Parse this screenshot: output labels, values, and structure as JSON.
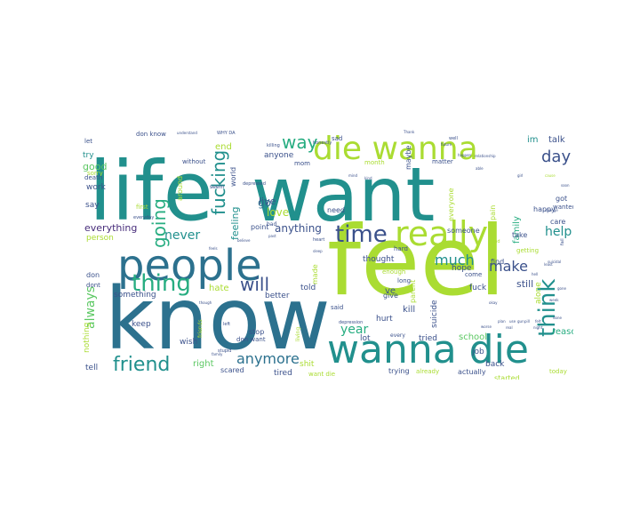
{
  "word_cloud": {
    "colors": {
      "purple": "#472c7a",
      "indigo": "#3b518b",
      "blue": "#2c718e",
      "teal": "#21908d",
      "green": "#27ad81",
      "lightgreen": "#5cc863",
      "lime": "#aadc32"
    },
    "words": [
      {
        "text": "life",
        "color": "teal"
      },
      {
        "text": "want",
        "color": "teal"
      },
      {
        "text": "feel",
        "color": "lime"
      },
      {
        "text": "know",
        "color": "blue"
      },
      {
        "text": "people",
        "color": "blue"
      },
      {
        "text": "wanna die",
        "color": "teal"
      },
      {
        "text": "die wanna",
        "color": "lime"
      },
      {
        "text": "really",
        "color": "lime"
      },
      {
        "text": "time",
        "color": "indigo"
      },
      {
        "text": "thing",
        "color": "green"
      },
      {
        "text": "think",
        "color": "teal"
      },
      {
        "text": "friend",
        "color": "teal"
      },
      {
        "text": "will",
        "color": "indigo"
      },
      {
        "text": "going",
        "color": "green"
      },
      {
        "text": "fucking",
        "color": "teal"
      },
      {
        "text": "way",
        "color": "green"
      },
      {
        "text": "day",
        "color": "indigo"
      },
      {
        "text": "much",
        "color": "teal"
      },
      {
        "text": "make",
        "color": "indigo"
      },
      {
        "text": "help",
        "color": "teal"
      },
      {
        "text": "year",
        "color": "green"
      },
      {
        "text": "anymore",
        "color": "blue"
      },
      {
        "text": "never",
        "color": "teal"
      },
      {
        "text": "everything",
        "color": "purple"
      },
      {
        "text": "always",
        "color": "lightgreen"
      },
      {
        "text": "anything",
        "color": "indigo"
      },
      {
        "text": "good",
        "color": "lightgreen"
      },
      {
        "text": "feeling",
        "color": "teal"
      },
      {
        "text": "love",
        "color": "lime"
      },
      {
        "text": "live",
        "color": "indigo"
      },
      {
        "text": "go",
        "color": "blue"
      },
      {
        "text": "im",
        "color": "teal"
      },
      {
        "text": "talk",
        "color": "indigo"
      },
      {
        "text": "end",
        "color": "lime"
      },
      {
        "text": "hate",
        "color": "lime"
      },
      {
        "text": "ve",
        "color": "indigo"
      },
      {
        "text": "family",
        "color": "green"
      },
      {
        "text": "still",
        "color": "indigo"
      },
      {
        "text": "school",
        "color": "lightgreen"
      },
      {
        "text": "kill",
        "color": "indigo"
      },
      {
        "text": "reason",
        "color": "green"
      },
      {
        "text": "right",
        "color": "lightgreen"
      },
      {
        "text": "shit",
        "color": "lime"
      },
      {
        "text": "job",
        "color": "indigo"
      },
      {
        "text": "tell",
        "color": "indigo"
      },
      {
        "text": "try",
        "color": "teal"
      },
      {
        "text": "say",
        "color": "indigo"
      },
      {
        "text": "work",
        "color": "indigo"
      },
      {
        "text": "person",
        "color": "lime"
      },
      {
        "text": "something",
        "color": "indigo"
      },
      {
        "text": "nothing",
        "color": "lime"
      },
      {
        "text": "keep",
        "color": "indigo"
      },
      {
        "text": "wish",
        "color": "indigo"
      },
      {
        "text": "better",
        "color": "indigo"
      },
      {
        "text": "told",
        "color": "indigo"
      },
      {
        "text": "made",
        "color": "lime"
      },
      {
        "text": "hope",
        "color": "indigo"
      },
      {
        "text": "hurt",
        "color": "indigo"
      },
      {
        "text": "thought",
        "color": "indigo"
      },
      {
        "text": "suicide",
        "color": "indigo"
      },
      {
        "text": "fuck",
        "color": "indigo"
      },
      {
        "text": "parent",
        "color": "lime"
      },
      {
        "text": "alone",
        "color": "lime"
      },
      {
        "text": "tried",
        "color": "indigo"
      },
      {
        "text": "lot",
        "color": "indigo"
      },
      {
        "text": "back",
        "color": "indigo"
      },
      {
        "text": "actually",
        "color": "indigo"
      },
      {
        "text": "tired",
        "color": "indigo"
      },
      {
        "text": "scared",
        "color": "indigo"
      },
      {
        "text": "stop",
        "color": "indigo"
      },
      {
        "text": "don",
        "color": "indigo"
      },
      {
        "text": "dont",
        "color": "indigo"
      },
      {
        "text": "sorry",
        "color": "lime"
      },
      {
        "text": "care",
        "color": "indigo"
      },
      {
        "text": "happy",
        "color": "indigo"
      },
      {
        "text": "got",
        "color": "indigo"
      },
      {
        "text": "wanted",
        "color": "indigo"
      },
      {
        "text": "find",
        "color": "indigo"
      },
      {
        "text": "come",
        "color": "indigo"
      },
      {
        "text": "take",
        "color": "indigo"
      },
      {
        "text": "getting",
        "color": "lime"
      },
      {
        "text": "someone",
        "color": "indigo"
      },
      {
        "text": "everyone",
        "color": "lime"
      },
      {
        "text": "pain",
        "color": "lime"
      },
      {
        "text": "need",
        "color": "indigo"
      },
      {
        "text": "anyone",
        "color": "indigo"
      },
      {
        "text": "mom",
        "color": "indigo"
      },
      {
        "text": "maybe",
        "color": "indigo"
      },
      {
        "text": "matter",
        "color": "indigo"
      },
      {
        "text": "month",
        "color": "lime"
      },
      {
        "text": "point",
        "color": "indigo"
      },
      {
        "text": "world",
        "color": "indigo"
      },
      {
        "text": "around",
        "color": "lime"
      },
      {
        "text": "don know",
        "color": "indigo"
      },
      {
        "text": "don want",
        "color": "indigo"
      },
      {
        "text": "want die",
        "color": "lime"
      },
      {
        "text": "without",
        "color": "indigo"
      },
      {
        "text": "death",
        "color": "indigo"
      },
      {
        "text": "let",
        "color": "indigo"
      },
      {
        "text": "sad",
        "color": "indigo"
      },
      {
        "text": "give",
        "color": "indigo"
      },
      {
        "text": "said",
        "color": "indigo"
      },
      {
        "text": "enough",
        "color": "lime"
      },
      {
        "text": "long",
        "color": "indigo"
      },
      {
        "text": "every",
        "color": "indigo"
      },
      {
        "text": "trying",
        "color": "indigo"
      },
      {
        "text": "already",
        "color": "lime"
      },
      {
        "text": "started",
        "color": "lime"
      },
      {
        "text": "today",
        "color": "lime"
      },
      {
        "text": "hard",
        "color": "indigo"
      },
      {
        "text": "first",
        "color": "lime"
      },
      {
        "text": "bad",
        "color": "indigo"
      },
      {
        "text": "seem",
        "color": "indigo"
      },
      {
        "text": "friends",
        "color": "lime"
      },
      {
        "text": "living",
        "color": "lime"
      },
      {
        "text": "stupid",
        "color": "indigo"
      },
      {
        "text": "depressed",
        "color": "indigo"
      },
      {
        "text": "depression",
        "color": "indigo"
      },
      {
        "text": "killing",
        "color": "indigo"
      },
      {
        "text": "everyday",
        "color": "indigo"
      },
      {
        "text": "left",
        "color": "indigo"
      },
      {
        "text": "honestly",
        "color": "indigo"
      },
      {
        "text": "future",
        "color": "indigo"
      },
      {
        "text": "Thank",
        "color": "indigo"
      },
      {
        "text": "well",
        "color": "indigo"
      },
      {
        "text": "real",
        "color": "indigo"
      },
      {
        "text": "able",
        "color": "indigo"
      },
      {
        "text": "cause",
        "color": "lime"
      },
      {
        "text": "change",
        "color": "indigo"
      },
      {
        "text": "week",
        "color": "indigo"
      },
      {
        "text": "okay",
        "color": "indigo"
      },
      {
        "text": "fail",
        "color": "indigo"
      },
      {
        "text": "dead",
        "color": "lime"
      },
      {
        "text": "heart",
        "color": "indigo"
      },
      {
        "text": "believe",
        "color": "indigo"
      },
      {
        "text": "sleep",
        "color": "indigo"
      },
      {
        "text": "feels",
        "color": "indigo"
      },
      {
        "text": "past",
        "color": "indigo"
      },
      {
        "text": "though",
        "color": "indigo"
      },
      {
        "text": "understand",
        "color": "indigo"
      },
      {
        "text": "family",
        "color": "indigo"
      },
      {
        "text": "mind",
        "color": "indigo"
      },
      {
        "text": "kind",
        "color": "indigo"
      },
      {
        "text": "happen",
        "color": "indigo"
      },
      {
        "text": "relationship",
        "color": "indigo"
      },
      {
        "text": "girl",
        "color": "indigo"
      },
      {
        "text": "suicidal",
        "color": "indigo"
      },
      {
        "text": "soon",
        "color": "indigo"
      },
      {
        "text": "gone",
        "color": "indigo"
      },
      {
        "text": "worse",
        "color": "indigo"
      },
      {
        "text": "felt",
        "color": "indigo"
      },
      {
        "text": "done",
        "color": "indigo"
      },
      {
        "text": "least",
        "color": "indigo"
      },
      {
        "text": "hell",
        "color": "indigo"
      },
      {
        "text": "plan",
        "color": "indigo"
      },
      {
        "text": "use",
        "color": "indigo"
      },
      {
        "text": "gun",
        "color": "indigo"
      },
      {
        "text": "pill",
        "color": "indigo"
      },
      {
        "text": "night",
        "color": "indigo"
      },
      {
        "text": "WHY DA",
        "color": "indigo"
      }
    ]
  }
}
